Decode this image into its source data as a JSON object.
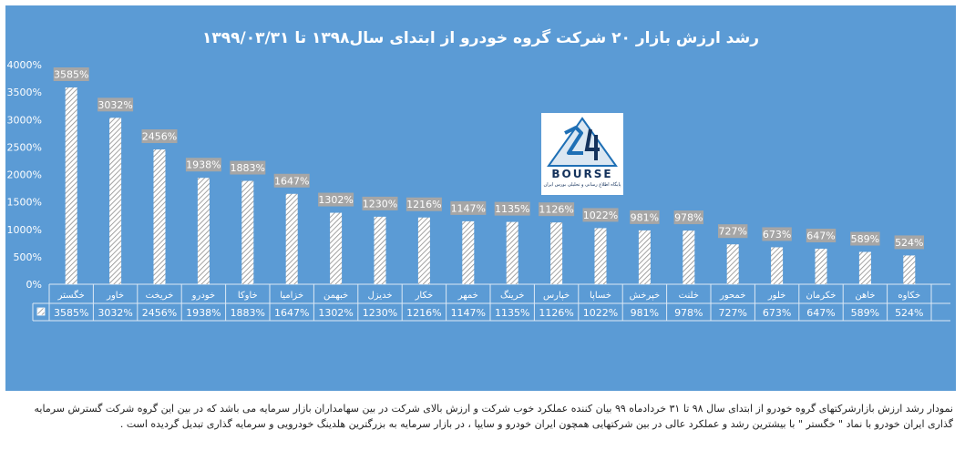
{
  "chart_data": {
    "type": "bar",
    "title": "رشد ارزش بازار ۲۰ شرکت گروه خودرو از ابتدای سال۱۳۹۸ تا ۱۳۹۹/۰۳/۳۱",
    "categories": [
      "خگستر",
      "خاور",
      "خریخت",
      "خودرو",
      "خاوکا",
      "خزامیا",
      "خبهمن",
      "خدیزل",
      "خکار",
      "خمهر",
      "خرینگ",
      "خپارس",
      "خساپا",
      "خپرخش",
      "خلنت",
      "خمحور",
      "خلور",
      "خکرمان",
      "خاهن",
      "خکاوه"
    ],
    "values": [
      3585,
      3032,
      2456,
      1938,
      1883,
      1647,
      1302,
      1230,
      1216,
      1147,
      1135,
      1126,
      1022,
      981,
      978,
      727,
      673,
      647,
      589,
      524
    ],
    "data_labels": [
      "3585%",
      "3032%",
      "2456%",
      "1938%",
      "1883%",
      "1647%",
      "1302%",
      "1230%",
      "1216%",
      "1147%",
      "1135%",
      "1126%",
      "1022%",
      "981%",
      "978%",
      "727%",
      "673%",
      "647%",
      "589%",
      "524%"
    ],
    "y_ticks": [
      "0%",
      "500%",
      "1000%",
      "1500%",
      "2000%",
      "2500%",
      "3000%",
      "3500%",
      "4000%"
    ],
    "ylim": [
      0,
      4000
    ],
    "grid": false,
    "legend": "data-table",
    "colors": {
      "background": "#5b9bd5",
      "bar": "#ffffff",
      "hatch": "#8c8c8c",
      "label_box": "#a6a6a6",
      "text": "#ffffff"
    }
  },
  "logo": {
    "word": "BOURSE",
    "subtitle": "پایگاه اطلاع رسانی و تحلیلی بورس ایران"
  },
  "caption": {
    "line1": "نمودار رشد ارزش بازارشرکتهای گروه خودرو  از ابتدای سال ۹۸ تا ۳۱ خردادماه ۹۹ بیان کننده عملکرد خوب شرکت و ارزش بالای شرکت در بین سهامداران بازار سرمایه می باشد که در بین این گروه شرکت گسترش سرمایه",
    "line2": "گذاری ایران خودرو با نماد \" خگستر \" با بیشترین رشد و عملکرد عالی در بین شرکتهایی همچون ایران خودرو و سایپا ، در بازار سرمایه به بزرگترین هلدینگ خودرویی و سرمایه گذاری تبدیل گردیده است ."
  }
}
